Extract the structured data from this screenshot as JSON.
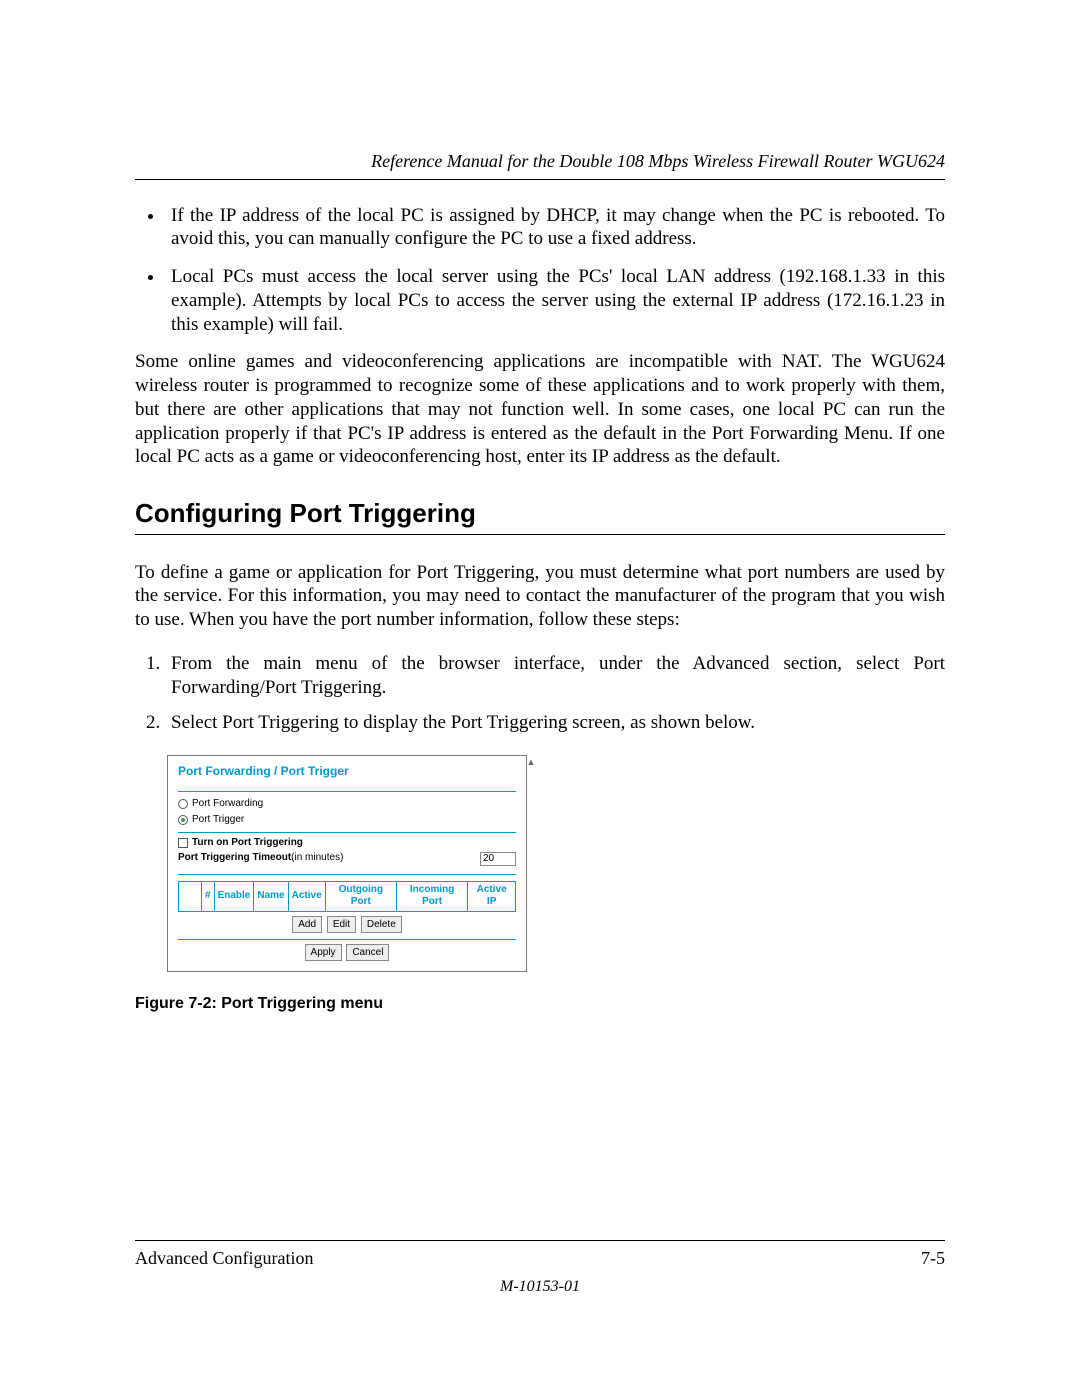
{
  "header": {
    "running_head": "Reference Manual for the Double 108 Mbps Wireless Firewall Router WGU624"
  },
  "bullets": [
    "If the IP address of the local PC is assigned by DHCP, it may change when the PC is rebooted. To avoid this, you can manually configure the PC to use a fixed address.",
    "Local PCs must access the local server using the PCs' local LAN address (192.168.1.33 in this example). Attempts by local PCs to access the server using the external IP address (172.16.1.23 in this example) will fail."
  ],
  "paragraph_nat": "Some online games and videoconferencing applications are incompatible with NAT. The WGU624 wireless router is programmed to recognize some of these applications and to work properly with them, but there are other applications that may not function well. In some cases, one local PC can run the application properly if that PC's IP address is entered as the default in the Port Forwarding Menu. If one local PC acts as a game or videoconferencing host, enter its IP address as the default.",
  "section_heading": "Configuring Port Triggering",
  "intro_paragraph": "To define a game or application for Port Triggering, you must determine what port numbers are used by the service. For this information, you may need to contact the manufacturer of the program that you wish to use. When you have the port number information, follow these steps:",
  "steps": [
    "From the main menu of the browser interface, under the Advanced section, select Port Forwarding/Port Triggering.",
    "Select Port Triggering to display the Port Triggering screen, as shown below."
  ],
  "figure_caption": "Figure 7-2:  Port Triggering menu",
  "footer": {
    "left": "Advanced Configuration",
    "right": "7-5",
    "doc_id": "M-10153-01"
  },
  "ui": {
    "title": "Port Forwarding / Port Trigger",
    "radio_forwarding": "Port Forwarding",
    "radio_trigger": "Port Trigger",
    "turn_on_label": "Turn on Port Triggering",
    "timeout_label_bold": "Port Triggering Timeout",
    "timeout_label_rest": "(in minutes)",
    "timeout_value": "20",
    "table": {
      "col_blank": "",
      "col_hash": "#",
      "col_enable": "Enable",
      "col_name": "Name",
      "col_active": "Active",
      "col_outgoing": "Outgoing Port",
      "col_incoming": "Incoming Port",
      "col_activeip": "Active IP"
    },
    "buttons": {
      "add": "Add",
      "edit": "Edit",
      "delete": "Delete",
      "apply": "Apply",
      "cancel": "Cancel"
    },
    "colors": {
      "accent": "#0099cc",
      "border": "#7a7a7a",
      "btn_bg": "#eeeeee"
    }
  }
}
